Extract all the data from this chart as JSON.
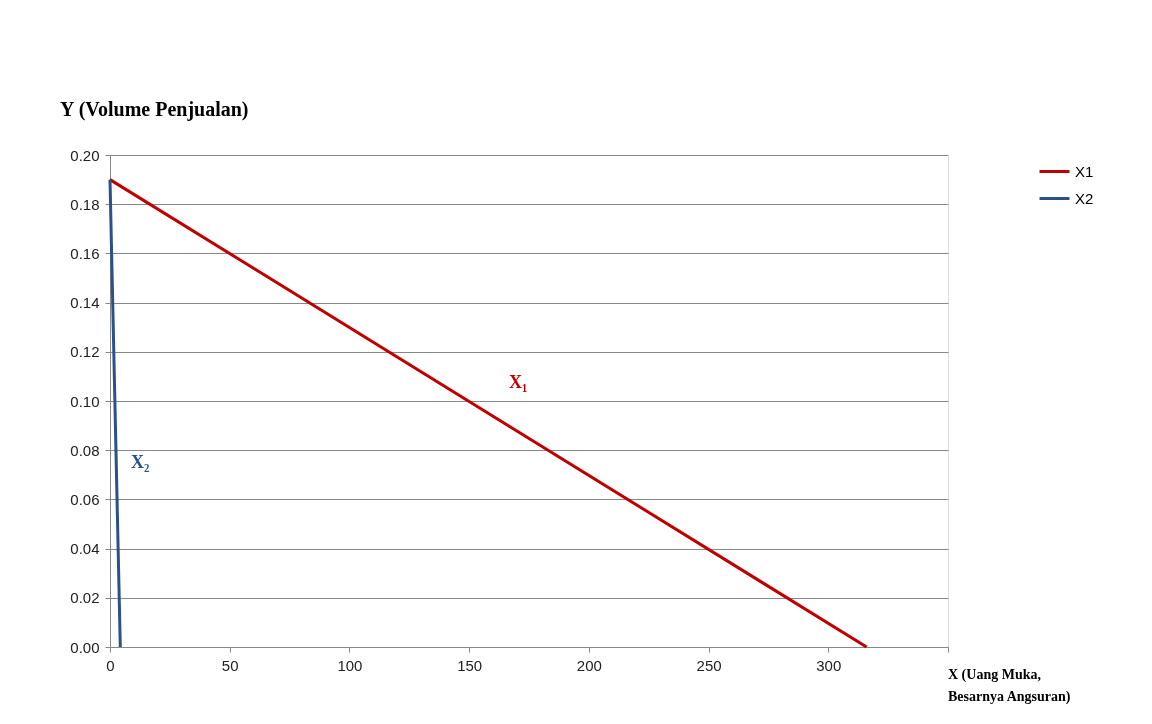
{
  "chart_data": {
    "type": "line",
    "xlabel": "X (Uang Muka, Besarnya Angsuran)",
    "ylabel": "Y (Volume Penjualan)",
    "series": [
      {
        "name": "X1",
        "color": "#c00000",
        "x": [
          0,
          316
        ],
        "values": [
          0.19,
          0.0
        ]
      },
      {
        "name": "X2",
        "color": "#2a5189",
        "x": [
          0,
          4.3
        ],
        "values": [
          0.19,
          0.0
        ]
      }
    ],
    "annotations": [
      "X₁",
      "X₂"
    ],
    "xlim": [
      0,
      350
    ],
    "xticks": [
      0,
      50,
      100,
      150,
      200,
      250,
      300
    ],
    "ylim": [
      0,
      0.2
    ],
    "yticks": [
      {
        "value": 0,
        "label": "0.00"
      },
      {
        "value": 0.02,
        "label": "0.02"
      },
      {
        "value": 0.04,
        "label": "0.04"
      },
      {
        "value": 0.06,
        "label": "0.06"
      },
      {
        "value": 0.08,
        "label": "0.08"
      },
      {
        "value": 0.1,
        "label": "0.10"
      },
      {
        "value": 0.12,
        "label": "0.12"
      },
      {
        "value": 0.14,
        "label": "0.14"
      },
      {
        "value": 0.16,
        "label": "0.16"
      },
      {
        "value": 0.18,
        "label": "0.18"
      },
      {
        "value": 0.2,
        "label": "0.20"
      }
    ],
    "grid": "y",
    "legend": "right",
    "marker": "none",
    "line_style": "solid"
  }
}
